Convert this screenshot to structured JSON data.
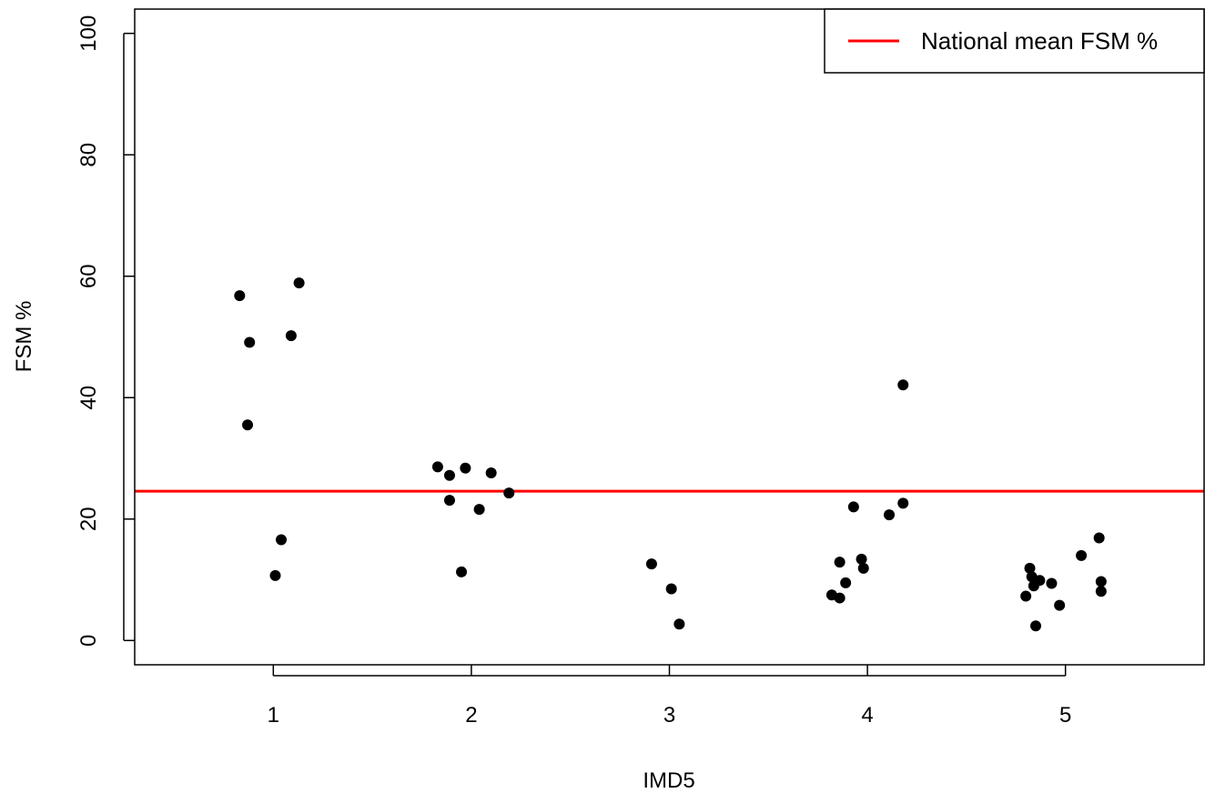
{
  "chart_data": {
    "type": "scatter",
    "xlabel": "IMD5",
    "ylabel": "FSM %",
    "xlim": [
      0.3,
      5.7
    ],
    "ylim": [
      -4,
      104
    ],
    "x_ticks": [
      "1",
      "2",
      "3",
      "4",
      "5"
    ],
    "y_ticks": [
      "0",
      "20",
      "40",
      "60",
      "80",
      "100"
    ],
    "grid": false,
    "points": [
      {
        "x": 0.83,
        "y": 56.8
      },
      {
        "x": 0.87,
        "y": 35.5
      },
      {
        "x": 0.88,
        "y": 49.1
      },
      {
        "x": 1.01,
        "y": 10.7
      },
      {
        "x": 1.04,
        "y": 16.6
      },
      {
        "x": 1.09,
        "y": 50.2
      },
      {
        "x": 1.13,
        "y": 58.9
      },
      {
        "x": 1.83,
        "y": 28.6
      },
      {
        "x": 1.89,
        "y": 27.2
      },
      {
        "x": 1.89,
        "y": 23.1
      },
      {
        "x": 1.95,
        "y": 11.3
      },
      {
        "x": 1.97,
        "y": 28.4
      },
      {
        "x": 2.04,
        "y": 21.6
      },
      {
        "x": 2.1,
        "y": 27.6
      },
      {
        "x": 2.19,
        "y": 24.3
      },
      {
        "x": 2.91,
        "y": 12.6
      },
      {
        "x": 3.01,
        "y": 8.5
      },
      {
        "x": 3.05,
        "y": 2.7
      },
      {
        "x": 3.82,
        "y": 7.5
      },
      {
        "x": 3.86,
        "y": 12.9
      },
      {
        "x": 3.86,
        "y": 7.0
      },
      {
        "x": 3.89,
        "y": 9.5
      },
      {
        "x": 3.93,
        "y": 22.0
      },
      {
        "x": 3.97,
        "y": 13.4
      },
      {
        "x": 3.98,
        "y": 11.9
      },
      {
        "x": 4.11,
        "y": 20.7
      },
      {
        "x": 4.18,
        "y": 22.6
      },
      {
        "x": 4.18,
        "y": 42.1
      },
      {
        "x": 4.8,
        "y": 7.3
      },
      {
        "x": 4.82,
        "y": 11.9
      },
      {
        "x": 4.83,
        "y": 10.5
      },
      {
        "x": 4.84,
        "y": 9.0
      },
      {
        "x": 4.85,
        "y": 2.4
      },
      {
        "x": 4.87,
        "y": 9.9
      },
      {
        "x": 4.93,
        "y": 9.4
      },
      {
        "x": 4.97,
        "y": 5.8
      },
      {
        "x": 5.08,
        "y": 14.0
      },
      {
        "x": 5.17,
        "y": 16.9
      },
      {
        "x": 5.18,
        "y": 9.7
      },
      {
        "x": 5.18,
        "y": 8.1
      }
    ],
    "reference_line": {
      "y": 24.6,
      "color": "#ff0000",
      "label": "National mean FSM %"
    },
    "legend": {
      "entries": [
        "National mean FSM %"
      ],
      "placement": "top-right"
    },
    "point_color": "#000000"
  }
}
